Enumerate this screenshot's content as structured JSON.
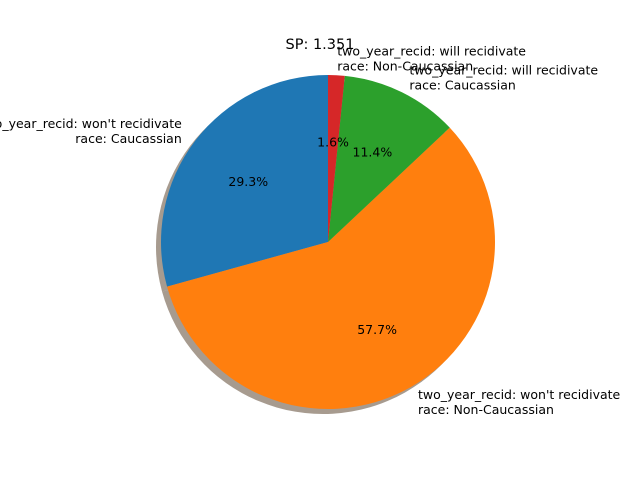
{
  "chart_data": {
    "type": "pie",
    "title": "SP: 1.351",
    "start_angle_deg": 90,
    "direction": "counterclockwise",
    "shadow": true,
    "slices": [
      {
        "label_line1": "two_year_recid: won't recidivate",
        "label_line2": "race: Caucassian",
        "value": 29.3,
        "pct_label": "29.3%",
        "color": "#1f77b4"
      },
      {
        "label_line1": "two_year_recid: won't recidivate",
        "label_line2": "race: Non-Caucassian",
        "value": 57.7,
        "pct_label": "57.7%",
        "color": "#ff7f0e"
      },
      {
        "label_line1": "two_year_recid: will recidivate",
        "label_line2": "race: Caucassian",
        "value": 11.4,
        "pct_label": "11.4%",
        "color": "#2ca02c"
      },
      {
        "label_line1": "two_year_recid: will recidivate",
        "label_line2": "race: Non-Caucassian",
        "value": 1.6,
        "pct_label": "1.6%",
        "color": "#d62728"
      }
    ]
  }
}
